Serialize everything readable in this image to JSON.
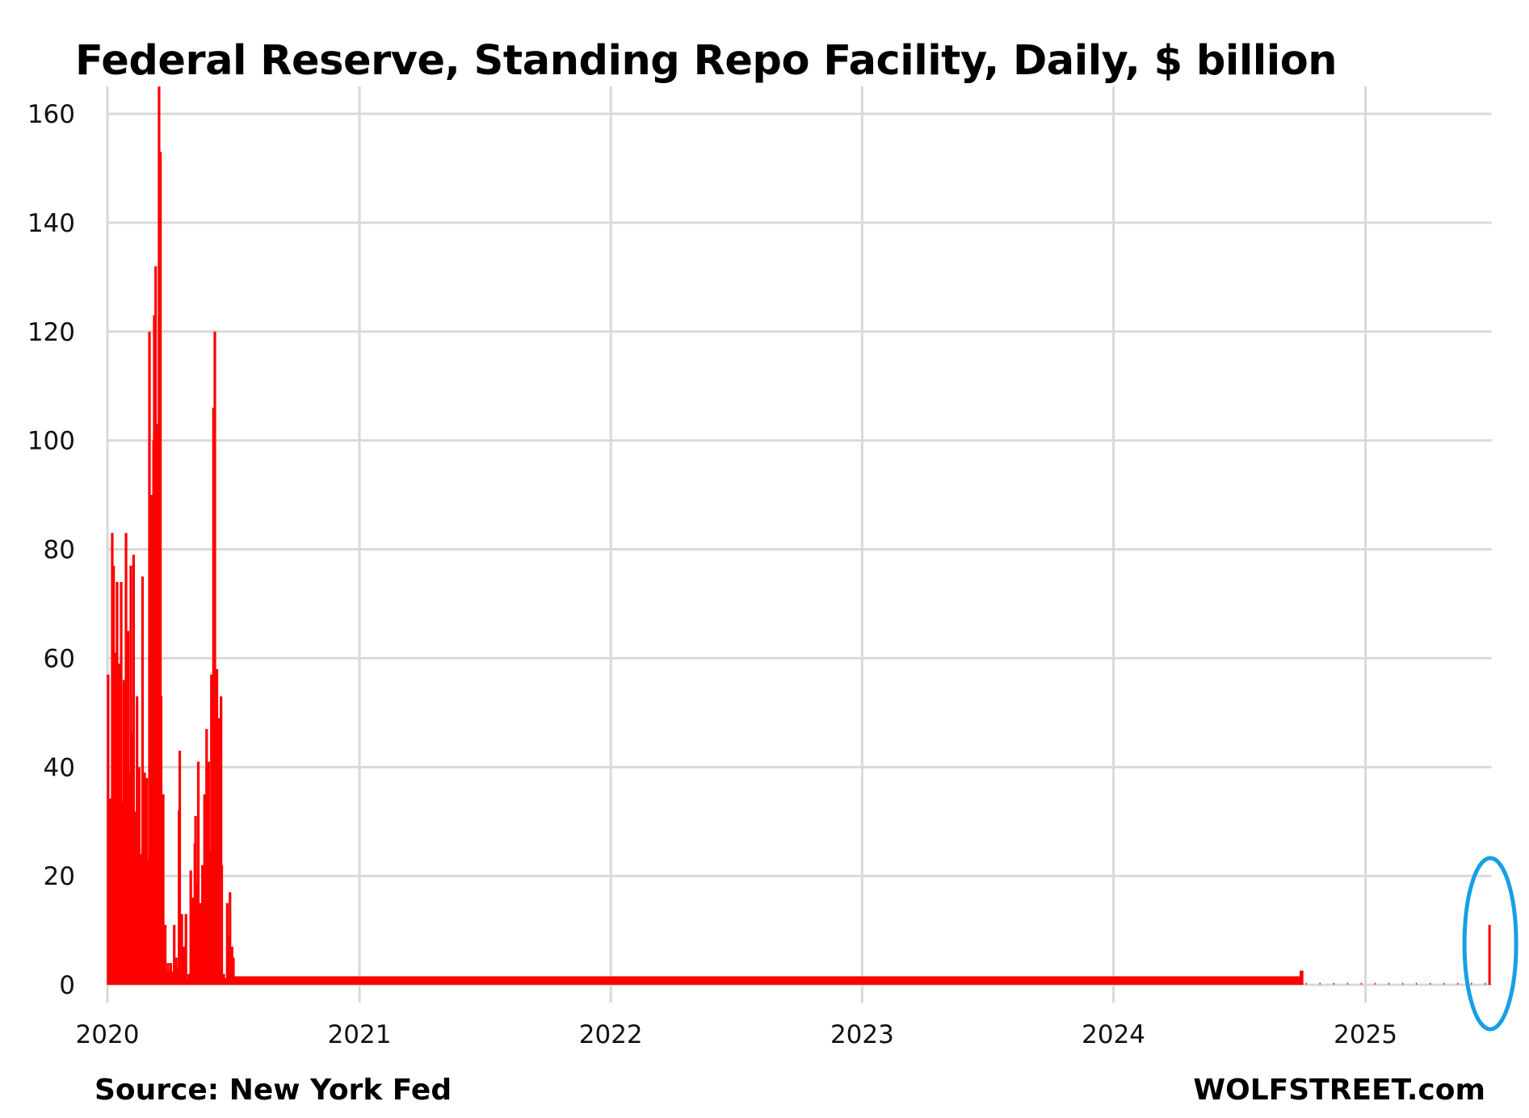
{
  "chart_data": {
    "type": "bar",
    "title": "Federal Reserve, Standing Repo Facility, Daily, $ billion",
    "source": "Source: New York Fed",
    "brand": "WOLFSTREET.com",
    "xlabel": "",
    "ylabel": "",
    "x_unit": "days since 2020-01-01",
    "xlim": [
      0,
      2010
    ],
    "ylim": [
      0,
      165
    ],
    "grid": true,
    "y_ticks": [
      0,
      20,
      40,
      60,
      80,
      100,
      120,
      140,
      160
    ],
    "y_tick_labels": [
      "0",
      "20",
      "40",
      "60",
      "80",
      "100",
      "120",
      "140",
      "160"
    ],
    "x_ticks": [
      0,
      366,
      731,
      1096,
      1461,
      1827
    ],
    "x_tick_labels": [
      "2020",
      "2021",
      "2022",
      "2023",
      "2024",
      "2025"
    ],
    "series": [
      {
        "name": "Standing Repo Facility",
        "color": "#ff0000",
        "points": [
          [
            1,
            57
          ],
          [
            7,
            83
          ],
          [
            9,
            77
          ],
          [
            11,
            61
          ],
          [
            14,
            74
          ],
          [
            17,
            59
          ],
          [
            20,
            74
          ],
          [
            24,
            56
          ],
          [
            27,
            83
          ],
          [
            30,
            65
          ],
          [
            34,
            77
          ],
          [
            38,
            79
          ],
          [
            43,
            53
          ],
          [
            46,
            40
          ],
          [
            51,
            75
          ],
          [
            54,
            39
          ],
          [
            57,
            38
          ],
          [
            61,
            120
          ],
          [
            64,
            90
          ],
          [
            67,
            100
          ],
          [
            68,
            123
          ],
          [
            70,
            132
          ],
          [
            73,
            103
          ],
          [
            75,
            165
          ],
          [
            77,
            153
          ],
          [
            78,
            53
          ],
          [
            81,
            35
          ],
          [
            84,
            11
          ],
          [
            88,
            4
          ],
          [
            92,
            4
          ],
          [
            97,
            11
          ],
          [
            100,
            5
          ],
          [
            104,
            32
          ],
          [
            105,
            43
          ],
          [
            108,
            13
          ],
          [
            111,
            7
          ],
          [
            114,
            13
          ],
          [
            118,
            2
          ],
          [
            121,
            21
          ],
          [
            124,
            16
          ],
          [
            127,
            26
          ],
          [
            128,
            31
          ],
          [
            132,
            41
          ],
          [
            135,
            15
          ],
          [
            138,
            22
          ],
          [
            141,
            35
          ],
          [
            144,
            47
          ],
          [
            147,
            41
          ],
          [
            151,
            57
          ],
          [
            154,
            106
          ],
          [
            156,
            120
          ],
          [
            159,
            58
          ],
          [
            162,
            49
          ],
          [
            165,
            53
          ],
          [
            166,
            22
          ],
          [
            169,
            2
          ],
          [
            174,
            15
          ],
          [
            178,
            17
          ],
          [
            181,
            7
          ],
          [
            183,
            5
          ],
          [
            1733,
            2.6
          ],
          [
            1735,
            2.6
          ],
          [
            2007,
            11
          ]
        ]
      }
    ],
    "minor_value": 0.2,
    "minor_days": [
      278,
      520,
      640,
      648,
      660,
      700,
      720,
      735,
      760,
      790,
      820,
      850,
      870,
      900,
      930,
      960,
      985,
      1000,
      1020,
      1040,
      1060,
      1090,
      1100,
      1120,
      1140,
      1160,
      1180,
      1200,
      1220,
      1240,
      1260,
      1280,
      1300,
      1320,
      1340,
      1360,
      1380,
      1400,
      1420,
      1440,
      1460,
      1480,
      1500,
      1520,
      1540,
      1560,
      1580,
      1600,
      1620,
      1640,
      1660,
      1680,
      1700,
      1720,
      1740,
      1760,
      1780,
      1800,
      1820,
      1840,
      1860,
      1880,
      1900,
      1920,
      1940,
      1960,
      1980,
      2000
    ],
    "annotation": {
      "type": "ellipse-highlight",
      "target_day": 2007,
      "color": "#15a0e6"
    }
  }
}
